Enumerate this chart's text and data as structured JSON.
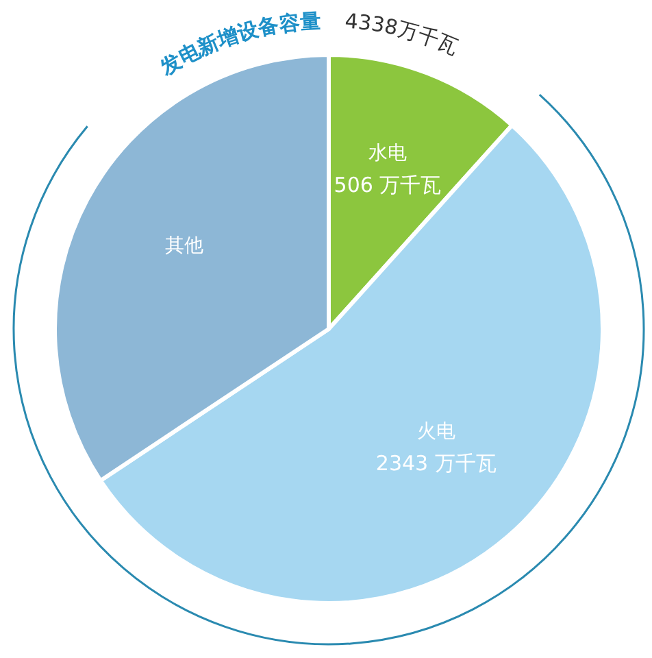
{
  "chart_data": {
    "type": "pie",
    "title": "发电新增设备容量",
    "subtitle": "4338万千瓦",
    "categories": [
      "水电",
      "火电",
      "其他"
    ],
    "values": [
      506,
      2343,
      1489
    ],
    "colors": [
      "#8cc63e",
      "#a6d7f1",
      "#8db7d6"
    ],
    "value_labels": [
      "506 万千瓦",
      "2343 万千瓦",
      null
    ]
  }
}
